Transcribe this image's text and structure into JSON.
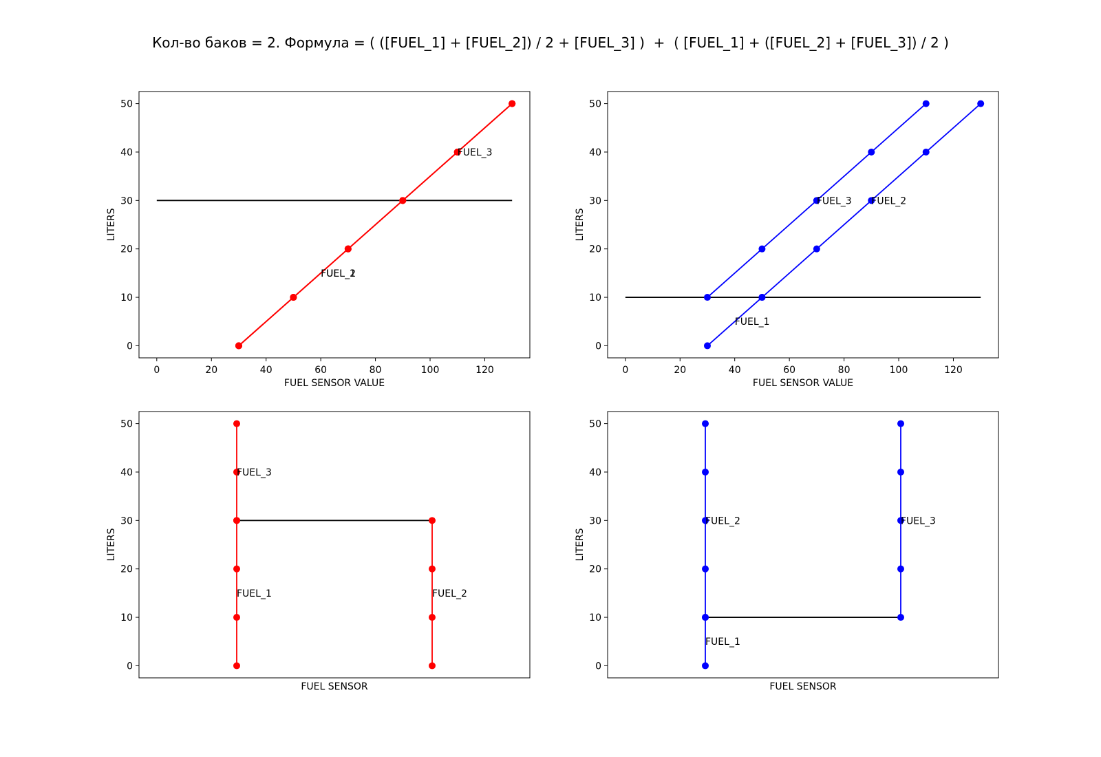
{
  "figure": {
    "suptitle": "Кол-во баков = 2. Формула = ( ([FUEL_1] + [FUEL_2]) / 2 + [FUEL_3] )  +  ( [FUEL_1] + ([FUEL_2] + [FUEL_3]) / 2 )"
  },
  "chart_data": [
    {
      "type": "line",
      "position": "top-left",
      "xlabel": "FUEL SENSOR VALUE",
      "ylabel": "LITERS",
      "xlim": [
        -6.5,
        136.5
      ],
      "ylim": [
        -2.5,
        52.5
      ],
      "xticks": [
        0,
        20,
        40,
        60,
        80,
        100,
        120
      ],
      "yticks": [
        0,
        10,
        20,
        30,
        40,
        50
      ],
      "grid": false,
      "series": [
        {
          "name": "FUEL_1",
          "color": "#ff0000",
          "marker": true,
          "x": [
            30,
            50,
            70,
            90,
            110,
            130
          ],
          "y": [
            0,
            10,
            20,
            30,
            40,
            50
          ]
        },
        {
          "name": "FUEL_2",
          "color": "#ff0000",
          "marker": true,
          "x": [
            30,
            50,
            70,
            90,
            110,
            130
          ],
          "y": [
            0,
            10,
            20,
            30,
            40,
            50
          ]
        },
        {
          "name": "FUEL_3",
          "color": "#ff0000",
          "marker": true,
          "x": [
            30,
            50,
            70,
            90,
            110,
            130
          ],
          "y": [
            0,
            10,
            20,
            30,
            40,
            50
          ]
        },
        {
          "name": "",
          "color": "#000000",
          "marker": false,
          "x": [
            0,
            130
          ],
          "y": [
            30,
            30
          ]
        }
      ],
      "annotations": [
        {
          "text": "FUEL_1",
          "x": 60,
          "y": 15
        },
        {
          "text": "FUEL_2",
          "x": 60,
          "y": 15
        },
        {
          "text": "FUEL_3",
          "x": 110,
          "y": 40
        }
      ]
    },
    {
      "type": "line",
      "position": "top-right",
      "xlabel": "FUEL SENSOR VALUE",
      "ylabel": "LITERS",
      "xlim": [
        -6.5,
        136.5
      ],
      "ylim": [
        -2.5,
        52.5
      ],
      "xticks": [
        0,
        20,
        40,
        60,
        80,
        100,
        120
      ],
      "yticks": [
        0,
        10,
        20,
        30,
        40,
        50
      ],
      "grid": false,
      "series": [
        {
          "name": "FUEL_1",
          "color": "#0000ff",
          "marker": true,
          "x": [
            30,
            50
          ],
          "y": [
            0,
            10
          ]
        },
        {
          "name": "FUEL_2",
          "color": "#0000ff",
          "marker": true,
          "x": [
            50,
            70,
            90,
            110,
            130
          ],
          "y": [
            10,
            20,
            30,
            40,
            50
          ]
        },
        {
          "name": "FUEL_3",
          "color": "#0000ff",
          "marker": true,
          "x": [
            30,
            50,
            70,
            90,
            110
          ],
          "y": [
            10,
            20,
            30,
            40,
            50
          ]
        },
        {
          "name": "",
          "color": "#000000",
          "marker": false,
          "x": [
            0,
            130
          ],
          "y": [
            10,
            10
          ]
        }
      ],
      "annotations": [
        {
          "text": "FUEL_1",
          "x": 40,
          "y": 5
        },
        {
          "text": "FUEL_2",
          "x": 90,
          "y": 30
        },
        {
          "text": "FUEL_3",
          "x": 70,
          "y": 30
        }
      ]
    },
    {
      "type": "line",
      "position": "bottom-left",
      "xlabel": "FUEL SENSOR",
      "ylabel": "LITERS",
      "xlim": [
        -0.5,
        1.5
      ],
      "ylim": [
        -2.5,
        52.5
      ],
      "xticks": [],
      "yticks": [
        0,
        10,
        20,
        30,
        40,
        50
      ],
      "grid": false,
      "series": [
        {
          "name": "FUEL_1",
          "color": "#ff0000",
          "marker": true,
          "x": [
            0,
            0,
            0,
            0
          ],
          "y": [
            0,
            10,
            20,
            30
          ]
        },
        {
          "name": "FUEL_2",
          "color": "#ff0000",
          "marker": true,
          "x": [
            1,
            1,
            1,
            1
          ],
          "y": [
            0,
            10,
            20,
            30
          ]
        },
        {
          "name": "FUEL_3",
          "color": "#ff0000",
          "marker": true,
          "x": [
            0,
            0,
            0
          ],
          "y": [
            30,
            40,
            50
          ]
        },
        {
          "name": "",
          "color": "#000000",
          "marker": false,
          "x": [
            0,
            1
          ],
          "y": [
            30,
            30
          ]
        }
      ],
      "annotations": [
        {
          "text": "FUEL_1",
          "x": 0,
          "y": 15
        },
        {
          "text": "FUEL_2",
          "x": 1,
          "y": 15
        },
        {
          "text": "FUEL_3",
          "x": 0,
          "y": 40
        }
      ]
    },
    {
      "type": "line",
      "position": "bottom-right",
      "xlabel": "FUEL SENSOR",
      "ylabel": "LITERS",
      "xlim": [
        -0.5,
        1.5
      ],
      "ylim": [
        -2.5,
        52.5
      ],
      "xticks": [],
      "yticks": [
        0,
        10,
        20,
        30,
        40,
        50
      ],
      "grid": false,
      "series": [
        {
          "name": "FUEL_1",
          "color": "#0000ff",
          "marker": true,
          "x": [
            0,
            0
          ],
          "y": [
            0,
            10
          ]
        },
        {
          "name": "FUEL_2",
          "color": "#0000ff",
          "marker": true,
          "x": [
            0,
            0,
            0,
            0,
            0
          ],
          "y": [
            10,
            20,
            30,
            40,
            50
          ]
        },
        {
          "name": "FUEL_3",
          "color": "#0000ff",
          "marker": true,
          "x": [
            1,
            1,
            1,
            1,
            1
          ],
          "y": [
            10,
            20,
            30,
            40,
            50
          ]
        },
        {
          "name": "",
          "color": "#000000",
          "marker": false,
          "x": [
            0,
            1
          ],
          "y": [
            10,
            10
          ]
        }
      ],
      "annotations": [
        {
          "text": "FUEL_1",
          "x": 0,
          "y": 5
        },
        {
          "text": "FUEL_2",
          "x": 0,
          "y": 30
        },
        {
          "text": "FUEL_3",
          "x": 1,
          "y": 30
        }
      ]
    }
  ]
}
